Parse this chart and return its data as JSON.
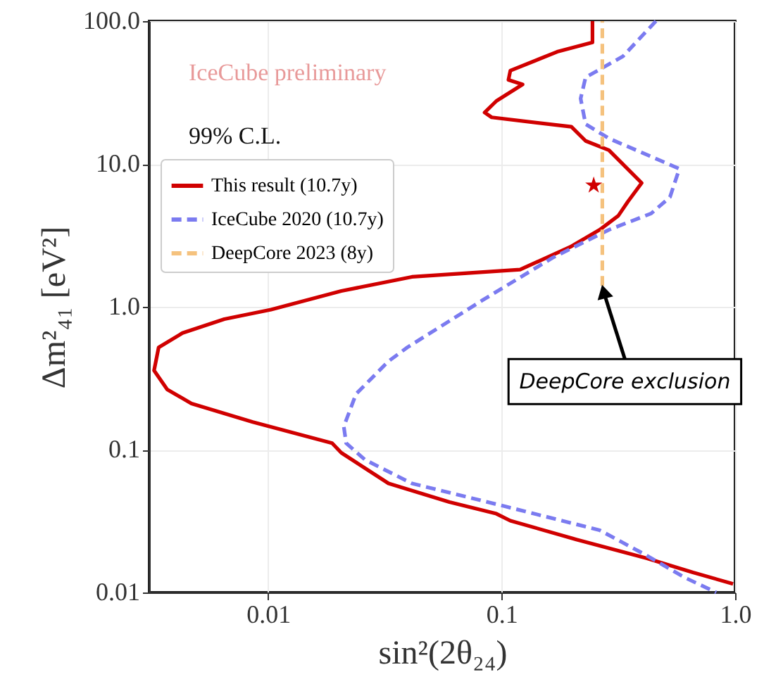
{
  "chart_data": {
    "type": "line",
    "xlabel": "sin²(2θ₂₄)",
    "ylabel": "Δm²₄₁ [eV²]",
    "log": "xy",
    "xlim": [
      0.0031,
      1.0
    ],
    "ylim": [
      0.01,
      100.0
    ],
    "xticks": [
      0.01,
      0.1,
      {
        "value": 1.0,
        "label": "1.0"
      }
    ],
    "yticks": [
      0.01,
      0.1,
      {
        "value": 1.0,
        "label": "1.0"
      },
      {
        "value": 10.0,
        "label": "10.0"
      },
      {
        "value": 100.0,
        "label": "100.0"
      }
    ],
    "grid": true,
    "legend": "top left",
    "annotations": [
      "IceCube preliminary",
      "99% C.L.",
      {
        "text": "DeepCore exclusion",
        "x": 0.27,
        "y": 1.4
      }
    ],
    "series": [
      {
        "name": "This result (10.7y)",
        "color": "#d00000",
        "line_style": "solid",
        "x": [
          0.245,
          0.245,
          0.173,
          0.109,
          0.107,
          0.123,
          0.095,
          0.0846,
          0.0907,
          0.199,
          0.229,
          0.288,
          0.398,
          0.347,
          0.316,
          0.263,
          0.199,
          0.12,
          0.0413,
          0.0206,
          0.0103,
          0.0065,
          0.0043,
          0.0034,
          0.00325,
          0.0037,
          0.0047,
          0.0086,
          0.0188,
          0.0206,
          0.0328,
          0.0598,
          0.095,
          0.109,
          0.209,
          0.417,
          0.66,
          0.98
        ],
        "values": [
          100,
          71,
          61,
          45,
          38.8,
          36,
          27.6,
          22.9,
          21.2,
          18.2,
          14.5,
          12.5,
          7.36,
          5.44,
          4.34,
          3.46,
          2.65,
          1.82,
          1.62,
          1.29,
          0.955,
          0.82,
          0.655,
          0.52,
          0.358,
          0.264,
          0.21,
          0.156,
          0.111,
          0.095,
          0.058,
          0.043,
          0.0356,
          0.0318,
          0.0235,
          0.0174,
          0.0138,
          0.0115
        ]
      },
      {
        "name": "IceCube 2020 (10.7y)",
        "color": "#7b7bf0",
        "line_style": "dashed",
        "x": [
          0.458,
          0.331,
          0.229,
          0.218,
          0.229,
          0.288,
          0.577,
          0.526,
          0.437,
          0.288,
          0.165,
          0.0827,
          0.0395,
          0.0328,
          0.0238,
          0.0211,
          0.0216,
          0.026,
          0.0413,
          0.104,
          0.263,
          0.417,
          0.604,
          0.83
        ],
        "values": [
          100,
          56.7,
          40.4,
          28.7,
          19,
          15.1,
          9.25,
          5.86,
          4.5,
          3.46,
          2.2,
          1.11,
          0.52,
          0.416,
          0.245,
          0.145,
          0.111,
          0.085,
          0.058,
          0.04,
          0.0273,
          0.0182,
          0.0128,
          0.01
        ]
      },
      {
        "name": "DeepCore 2023 (8y)",
        "color": "#f5c27e",
        "line_style": "dashed",
        "x": [
          0.27,
          0.27
        ],
        "values": [
          1.4,
          100
        ]
      },
      {
        "type": "scatter",
        "marker": "star",
        "color": "#d00000",
        "x": [
          0.248
        ],
        "values": [
          7.08
        ]
      }
    ]
  }
}
